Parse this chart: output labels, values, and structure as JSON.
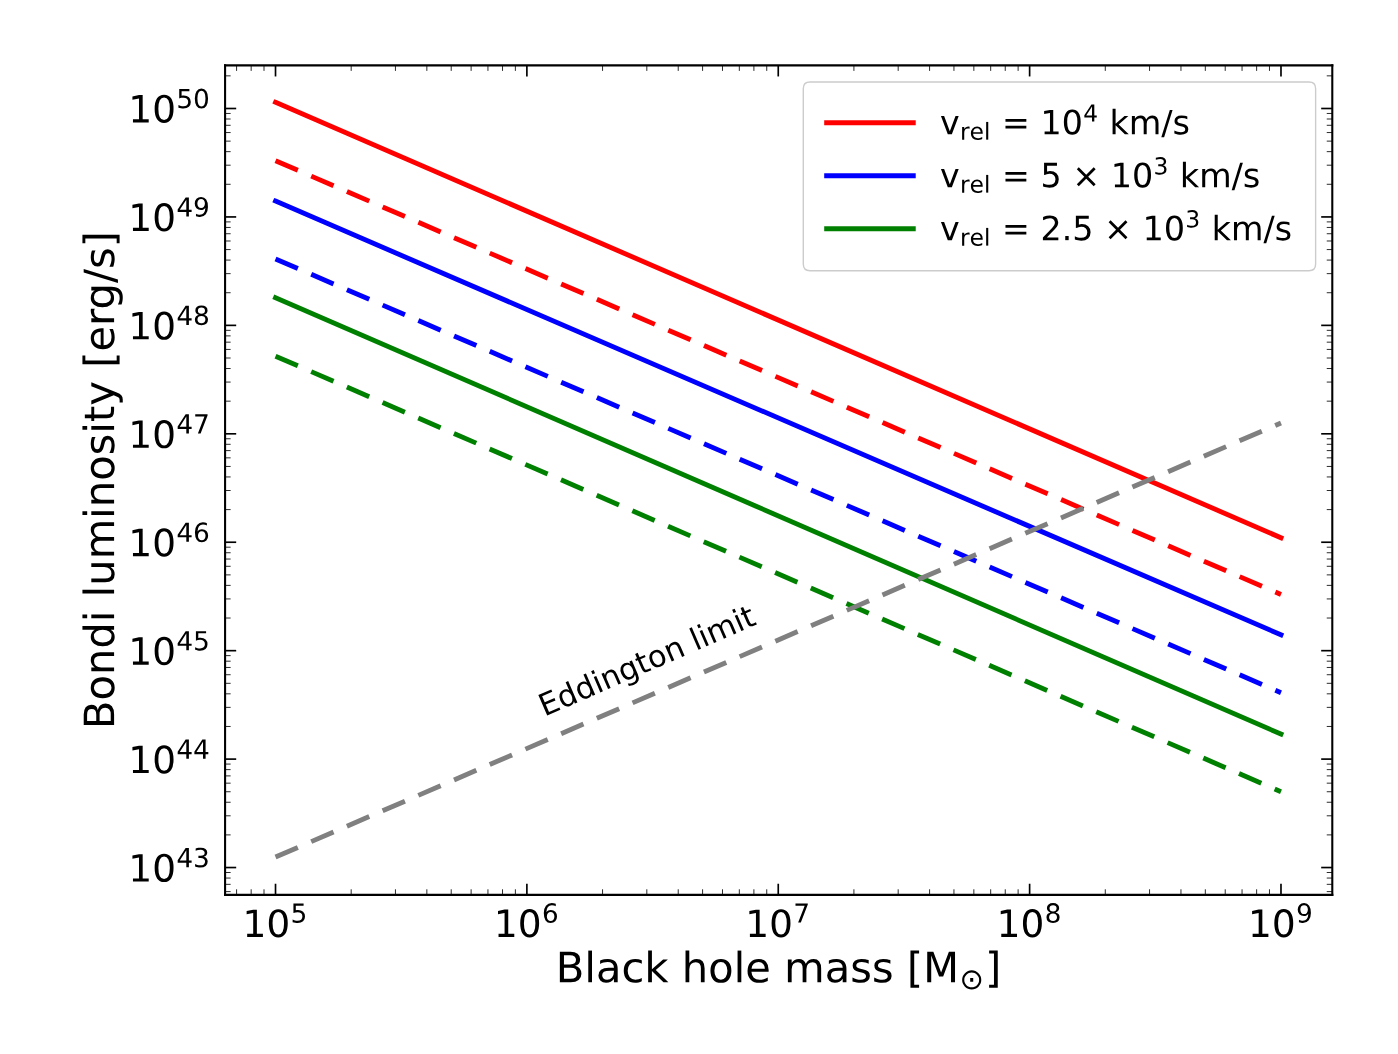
{
  "chart_data": {
    "type": "line",
    "xlabel": "Black hole mass [M$_{⊙}$]",
    "ylabel": "Bondi luminosity [erg/s]",
    "log": "xy",
    "legend": "top right",
    "xlim": [
      63000.0,
      1600000000.0
    ],
    "ylim": [
      5.6e+42,
      2.5e+50
    ],
    "xticks": [
      {
        "value": 100000.0,
        "label": "10$^{5}$"
      },
      {
        "value": 1000000.0,
        "label": "10$^{6}$"
      },
      {
        "value": 10000000.0,
        "label": "10$^{7}$"
      },
      {
        "value": 100000000.0,
        "label": "10$^{8}$"
      },
      {
        "value": 1000000000.0,
        "label": "10$^{9}$"
      }
    ],
    "yticks": [
      {
        "value": 1e+43,
        "label": "10$^{43}$"
      },
      {
        "value": 1e+44,
        "label": "10$^{44}$"
      },
      {
        "value": 1e+45,
        "label": "10$^{45}$"
      },
      {
        "value": 1e+46,
        "label": "10$^{46}$"
      },
      {
        "value": 1e+47,
        "label": "10$^{47}$"
      },
      {
        "value": 1e+48,
        "label": "10$^{48}$"
      },
      {
        "value": 1e+49,
        "label": "10$^{49}$"
      },
      {
        "value": 1e+50,
        "label": "10$^{50}$"
      }
    ],
    "x": [
      100000.0,
      1000000000.0
    ],
    "series": [
      {
        "name": "v$_{rel}$ = 10$^{4}$ km/s",
        "color": "#ff0000",
        "line_style": "solid",
        "values": [
          1.14e+50,
          1.1e+46
        ]
      },
      {
        "color": "#ff0000",
        "line_style": "dashed",
        "values": [
          3.3e+49,
          3.3e+45
        ]
      },
      {
        "name": "v$_{rel}$ = 5 × 10$^{3}$ km/s",
        "color": "#0000ff",
        "line_style": "solid",
        "values": [
          1.4e+49,
          1.4e+45
        ]
      },
      {
        "color": "#0000ff",
        "line_style": "dashed",
        "values": [
          4.1e+48,
          4.1e+44
        ]
      },
      {
        "name": "v$_{rel}$ = 2.5 × 10$^{3}$ km/s",
        "color": "#008000",
        "line_style": "solid",
        "values": [
          1.8e+48,
          1.7e+44
        ]
      },
      {
        "color": "#008000",
        "line_style": "dashed",
        "values": [
          5.2e+47,
          5e+43
        ]
      },
      {
        "color": "#808080",
        "line_style": "dashed",
        "values": [
          1.25e+43,
          1.26e+47
        ]
      }
    ],
    "annotations": [
      {
        "text": "Eddington limit",
        "x": 3400000.0,
        "y": 4.2e+44
      }
    ]
  }
}
